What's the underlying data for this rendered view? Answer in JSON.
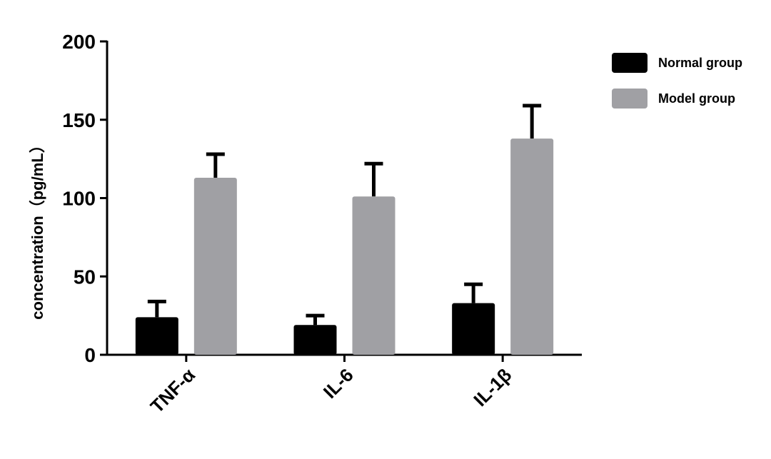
{
  "chart_data": {
    "type": "bar",
    "y_label": "concentration（pg/mL）",
    "categories": [
      "TNF-α",
      "IL-6",
      "IL-1β"
    ],
    "series": [
      {
        "name": "Normal group",
        "color": "#000000",
        "values": [
          24,
          19,
          33
        ],
        "errors": [
          10,
          6,
          12
        ]
      },
      {
        "name": "Model group",
        "color": "#a0a0a4",
        "values": [
          113,
          101,
          138
        ],
        "errors": [
          15,
          21,
          21
        ]
      }
    ],
    "ylim": [
      0,
      200
    ],
    "yticks": [
      0,
      50,
      100,
      150,
      200
    ],
    "legend": "right"
  }
}
